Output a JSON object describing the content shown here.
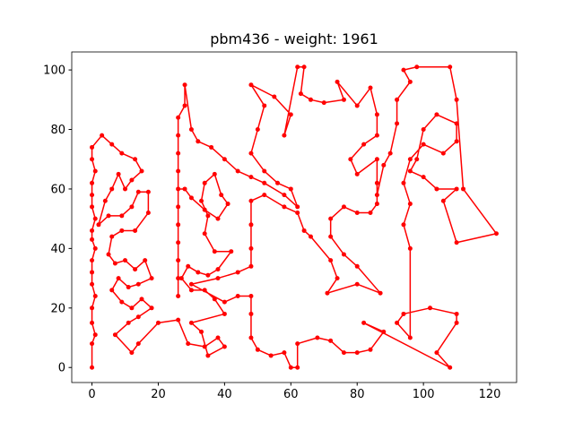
{
  "chart_data": {
    "type": "line",
    "title": "pbm436 - weight: 1961",
    "xlim": [
      -6.1,
      128.1
    ],
    "ylim": [
      -5.05,
      106.05
    ],
    "xticks": [
      0,
      20,
      40,
      60,
      80,
      100,
      120
    ],
    "yticks": [
      0,
      20,
      40,
      60,
      80,
      100
    ],
    "grid": false,
    "markers": true,
    "series": [
      {
        "color": "#ff0000",
        "x": [
          0,
          0,
          1,
          0,
          0,
          1,
          0,
          0,
          0,
          1,
          0,
          0,
          1,
          0,
          0,
          0,
          1,
          0,
          0,
          3,
          6,
          9,
          13,
          15,
          12,
          10,
          8,
          6,
          4,
          2,
          5,
          9,
          12,
          14,
          17,
          17,
          13,
          9,
          6,
          5,
          7,
          10,
          13,
          16,
          18,
          14,
          11,
          8,
          6,
          9,
          12,
          15,
          18,
          14,
          11,
          7,
          12,
          14,
          20,
          26,
          29,
          34,
          38,
          40,
          35,
          33,
          30,
          40,
          37,
          34,
          30,
          27,
          29,
          32,
          35,
          38,
          42,
          37,
          34,
          35,
          33,
          34,
          37,
          39,
          41,
          38,
          34,
          30,
          28,
          26,
          26,
          26,
          26,
          26,
          26,
          26,
          26,
          26,
          26,
          26,
          28,
          28,
          30,
          32,
          36,
          40,
          44,
          48,
          52,
          58,
          62,
          60,
          56,
          52,
          48,
          50,
          52,
          48,
          55,
          60,
          58,
          62,
          64,
          63,
          66,
          70,
          76,
          74,
          80,
          84,
          86,
          86,
          82,
          78,
          80,
          86,
          86,
          86,
          84,
          80,
          76,
          72,
          72,
          76,
          80,
          87,
          80,
          71,
          74,
          72,
          66,
          64,
          62,
          58,
          52,
          48,
          48,
          48,
          48,
          44,
          38,
          30,
          40,
          44,
          48,
          48,
          48,
          50,
          54,
          58,
          60,
          62,
          62,
          68,
          72,
          76,
          80,
          84,
          88,
          82,
          108,
          104,
          110,
          110,
          102,
          94,
          92,
          96,
          96,
          94,
          96,
          94,
          96,
          100,
          106,
          110,
          110,
          104,
          100,
          98,
          96,
          100,
          104,
          110,
          106,
          110,
          122,
          112,
          110,
          108,
          98,
          94,
          96,
          92,
          92,
          90,
          88,
          86
        ],
        "values": [
          0,
          8,
          11,
          15,
          20,
          24,
          28,
          32,
          36,
          40,
          43,
          46,
          50,
          54,
          58,
          62,
          66,
          70,
          74,
          78,
          75,
          72,
          70,
          66,
          63,
          60,
          65,
          60,
          56,
          48,
          51,
          51,
          54,
          59,
          59,
          52,
          46,
          46,
          44,
          38,
          35,
          36,
          33,
          36,
          30,
          28,
          27,
          30,
          26,
          22,
          20,
          23,
          20,
          17,
          15,
          11,
          5,
          8,
          15,
          16,
          8,
          7,
          10,
          7,
          4,
          12,
          15,
          18,
          23,
          26,
          26,
          30,
          34,
          32,
          31,
          33,
          39,
          39,
          45,
          51,
          56,
          62,
          65,
          58,
          55,
          50,
          53,
          57,
          60,
          60,
          54,
          48,
          42,
          36,
          30,
          24,
          66,
          72,
          78,
          84,
          88,
          95,
          80,
          76,
          74,
          70,
          66,
          64,
          62,
          58,
          54,
          60,
          62,
          66,
          72,
          80,
          88,
          95,
          91,
          85,
          78,
          101,
          101,
          92,
          90,
          89,
          90,
          96,
          88,
          94,
          85,
          78,
          75,
          70,
          65,
          70,
          62,
          55,
          52,
          52,
          54,
          50,
          44,
          38,
          34,
          25,
          28,
          25,
          30,
          36,
          44,
          46,
          52,
          54,
          58,
          56,
          48,
          40,
          34,
          32,
          30,
          28,
          22,
          24,
          24,
          18,
          10,
          6,
          4,
          5,
          0,
          0,
          8,
          10,
          9,
          5,
          5,
          6,
          12,
          15,
          0,
          5,
          15,
          18,
          20,
          18,
          15,
          10,
          40,
          48,
          55,
          62,
          70,
          75,
          72,
          76,
          82,
          85,
          80,
          70,
          66,
          64,
          60,
          60,
          56,
          42,
          45,
          60,
          90,
          101,
          101,
          100,
          96,
          90,
          82,
          72,
          68,
          58
        ]
      }
    ]
  }
}
